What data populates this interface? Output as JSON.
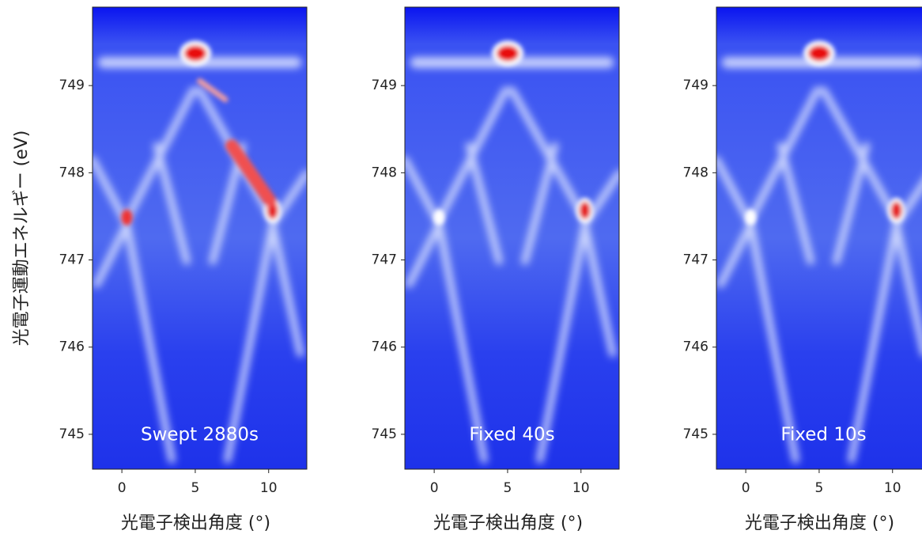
{
  "chart_data": [
    {
      "type": "heatmap",
      "ylabel": "光電子運動エネルギー (eV)",
      "xlabel": "光電子検出角度 (°)",
      "annotation": "Swept 2880s",
      "xlim": [
        -2,
        12.6
      ],
      "xticks": [
        0,
        5,
        10
      ],
      "ylim": [
        744.6,
        749.9
      ],
      "yticks": [
        745,
        746,
        747,
        748,
        749
      ]
    },
    {
      "type": "heatmap",
      "xlabel": "光電子検出角度 (°)",
      "annotation": "Fixed 40s",
      "xlim": [
        -2,
        12.6
      ],
      "xticks": [
        0,
        5,
        10
      ],
      "ylim": [
        744.6,
        749.9
      ],
      "yticks": [
        745,
        746,
        747,
        748,
        749
      ]
    },
    {
      "type": "heatmap",
      "xlabel": "光電子検出角度 (°)",
      "annotation": "Fixed 10s",
      "xlim": [
        -2,
        12.6
      ],
      "xticks": [
        0,
        5,
        10
      ],
      "ylim": [
        744.6,
        749.9
      ],
      "yticks": [
        745,
        746,
        747,
        748,
        749
      ]
    }
  ]
}
